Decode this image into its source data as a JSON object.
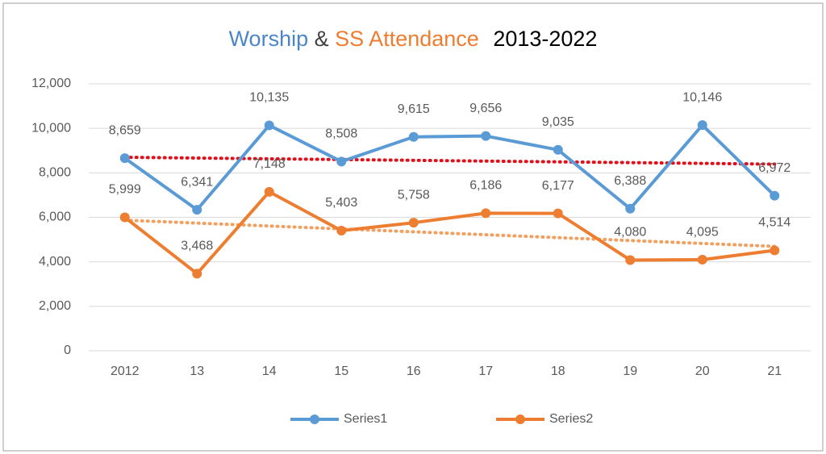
{
  "chart_data": {
    "type": "line",
    "title_parts": [
      {
        "text": "Worship",
        "color": "#4a86c8"
      },
      {
        "text": "&",
        "color": "#404040"
      },
      {
        "text": "SS Attendance",
        "color": "#ed7d31"
      },
      {
        "text": "2013-2022",
        "color": "#000000"
      }
    ],
    "categories": [
      "2012",
      "13",
      "14",
      "15",
      "16",
      "17",
      "18",
      "19",
      "20",
      "21"
    ],
    "series": [
      {
        "name": "Series1",
        "color": "#5b9bd5",
        "trend_color": "#e0101a",
        "values": [
          8659,
          6341,
          10135,
          8508,
          9615,
          9656,
          9035,
          6388,
          10146,
          6972
        ],
        "value_labels": [
          "8,659",
          "6,341",
          "10,135",
          "8,508",
          "9,615",
          "9,656",
          "9,035",
          "6,388",
          "10,146",
          "6,972"
        ]
      },
      {
        "name": "Series2",
        "color": "#ed7d31",
        "trend_color": "#f0a060",
        "values": [
          5999,
          3468,
          7148,
          5403,
          5758,
          6186,
          6177,
          4080,
          4095,
          4514
        ],
        "value_labels": [
          "5,999",
          "3,468",
          "7,148",
          "5,403",
          "5,758",
          "6,186",
          "6,177",
          "4,080",
          "4,095",
          "4,514"
        ]
      }
    ],
    "ylim": [
      0,
      12000
    ],
    "yticks": [
      0,
      {
        "value": 2000,
        "label": "2,000"
      },
      {
        "value": 4000,
        "label": "4,000"
      },
      {
        "value": 6000,
        "label": "6,000"
      },
      {
        "value": 8000,
        "label": "8,000"
      },
      {
        "value": 10000,
        "label": "10,000"
      },
      {
        "value": 12000,
        "label": "12,000"
      }
    ],
    "grid": true,
    "trendline": true,
    "legend": "bottom"
  }
}
